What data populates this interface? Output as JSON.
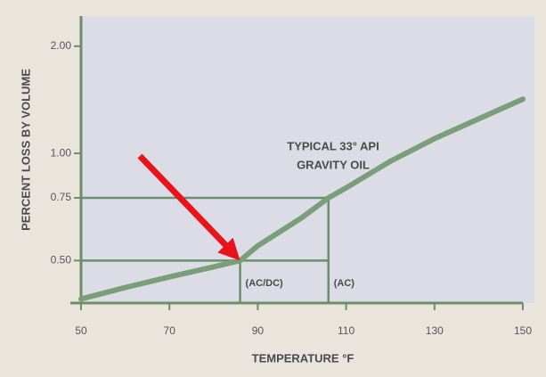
{
  "chart_data": {
    "type": "line",
    "xlabel": "TEMPERATURE °F",
    "ylabel": "PERCENT LOSS BY VOLUME",
    "annotation": [
      "TYPICAL 33° API",
      "GRAVITY OIL"
    ],
    "x": [
      50,
      60,
      70,
      80,
      86,
      90,
      100,
      106,
      110,
      120,
      130,
      140,
      150
    ],
    "series": [
      {
        "name": "TYPICAL 33° API GRAVITY OIL",
        "color": "#7a9e7a",
        "values": [
          0.39,
          0.42,
          0.45,
          0.48,
          0.5,
          0.55,
          0.66,
          0.75,
          0.8,
          0.95,
          1.1,
          1.25,
          1.42
        ]
      }
    ],
    "reference_lines": [
      {
        "x": 86,
        "y": 0.5,
        "label": "(AC/DC)"
      },
      {
        "x": 106,
        "y": 0.75,
        "label": "(AC)"
      }
    ],
    "xlim": [
      50,
      150
    ],
    "xticks": [
      50,
      70,
      90,
      110,
      130,
      150
    ],
    "ylim": [
      0.38,
      2.43
    ],
    "log_y": true,
    "yticks": [
      {
        "value": 0.5,
        "label": "0.50"
      },
      {
        "value": 0.75,
        "label": "0.75"
      },
      {
        "value": 1,
        "label": "1.00"
      },
      {
        "value": 2,
        "label": "2.00"
      }
    ],
    "axis_color": "#6a8f6a",
    "plot_background": "#dcdce6",
    "arrow_color": "#e8141a"
  }
}
